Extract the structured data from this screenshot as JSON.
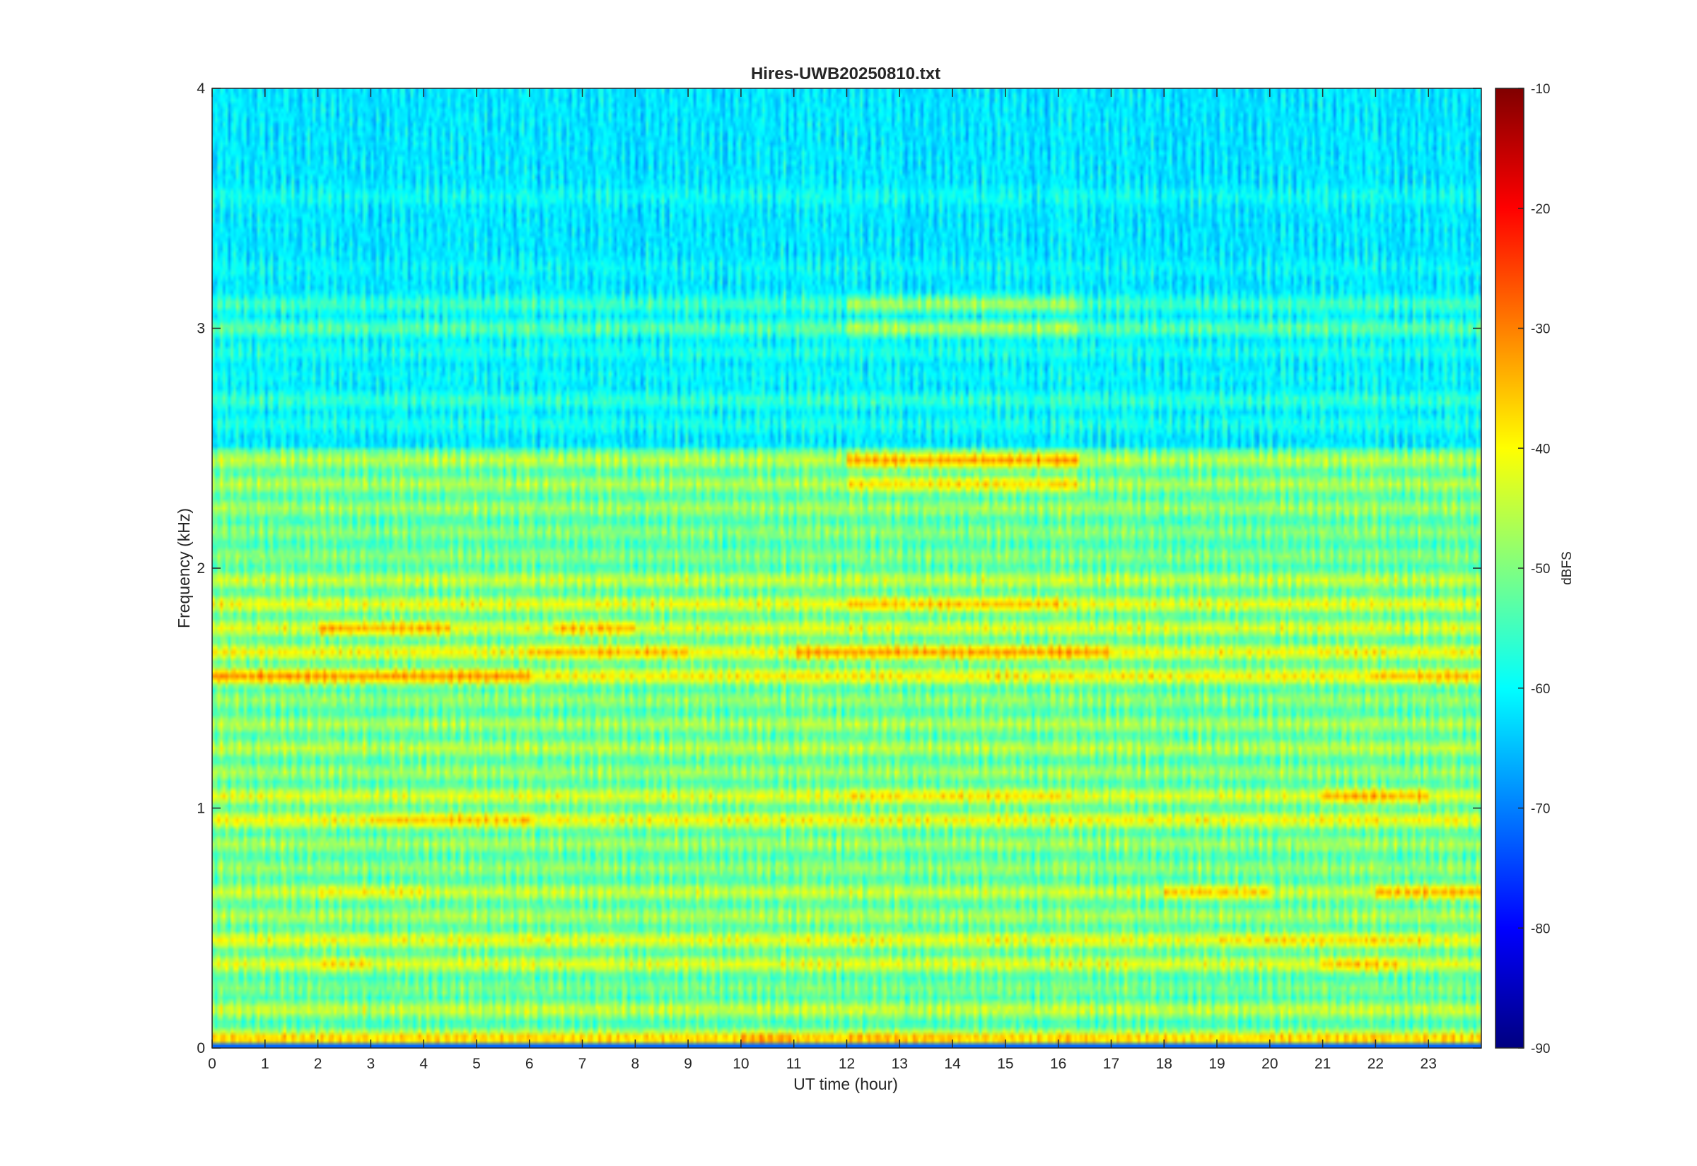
{
  "chart_data": {
    "type": "heatmap",
    "title": "Hires-UWB20250810.txt",
    "xlabel": "UT time (hour)",
    "ylabel": "Frequency (kHz)",
    "xlim": [
      0,
      24
    ],
    "ylim": [
      0,
      4
    ],
    "x_ticks": [
      "0",
      "1",
      "2",
      "3",
      "4",
      "5",
      "6",
      "7",
      "8",
      "9",
      "10",
      "11",
      "12",
      "13",
      "14",
      "15",
      "16",
      "17",
      "18",
      "19",
      "20",
      "21",
      "22",
      "23"
    ],
    "y_ticks": [
      "0",
      "1",
      "2",
      "3",
      "4"
    ],
    "colorbar": {
      "label": "dBFS",
      "range": [
        -90,
        -10
      ],
      "ticks": [
        "-90",
        "-80",
        "-70",
        "-60",
        "-50",
        "-40",
        "-30",
        "-20",
        "-10"
      ],
      "colormap": "jet"
    },
    "bands": [
      {
        "f": 0.04,
        "level": -36,
        "hot": [
          [
            10,
            11,
            -32
          ],
          [
            12,
            14,
            -34
          ]
        ]
      },
      {
        "f": 0.1,
        "level": -70
      },
      {
        "f": 0.16,
        "level": -44
      },
      {
        "f": 0.25,
        "level": -50
      },
      {
        "f": 0.35,
        "level": -42,
        "hot": [
          [
            2,
            3,
            -38
          ],
          [
            21,
            22.5,
            -36
          ]
        ]
      },
      {
        "f": 0.45,
        "level": -41,
        "hot": [
          [
            19,
            23,
            -38
          ]
        ]
      },
      {
        "f": 0.55,
        "level": -46
      },
      {
        "f": 0.65,
        "level": -44,
        "hot": [
          [
            2,
            4,
            -40
          ],
          [
            18,
            20,
            -36
          ],
          [
            22,
            24,
            -34
          ]
        ]
      },
      {
        "f": 0.75,
        "level": -48
      },
      {
        "f": 0.85,
        "level": -47
      },
      {
        "f": 0.95,
        "level": -40,
        "hot": [
          [
            3,
            6,
            -36
          ]
        ]
      },
      {
        "f": 1.05,
        "level": -42,
        "hot": [
          [
            12,
            16,
            -38
          ],
          [
            21,
            23,
            -34
          ]
        ]
      },
      {
        "f": 1.15,
        "level": -47
      },
      {
        "f": 1.25,
        "level": -45
      },
      {
        "f": 1.35,
        "level": -46
      },
      {
        "f": 1.45,
        "level": -48
      },
      {
        "f": 1.55,
        "level": -39,
        "hot": [
          [
            0,
            6,
            -32
          ],
          [
            22,
            24,
            -35
          ]
        ]
      },
      {
        "f": 1.65,
        "level": -40,
        "hot": [
          [
            6,
            9,
            -35
          ],
          [
            11,
            17,
            -33
          ]
        ]
      },
      {
        "f": 1.75,
        "level": -42,
        "hot": [
          [
            2,
            4.5,
            -34
          ],
          [
            6.5,
            8,
            -35
          ]
        ]
      },
      {
        "f": 1.85,
        "level": -41,
        "hot": [
          [
            12,
            16,
            -36
          ]
        ]
      },
      {
        "f": 1.95,
        "level": -44
      },
      {
        "f": 2.05,
        "level": -49
      },
      {
        "f": 2.15,
        "level": -49
      },
      {
        "f": 2.25,
        "level": -47
      },
      {
        "f": 2.35,
        "level": -46,
        "hot": [
          [
            12,
            16.4,
            -38
          ]
        ]
      },
      {
        "f": 2.45,
        "level": -45,
        "hot": [
          [
            12,
            16.4,
            -33
          ]
        ]
      },
      {
        "f": 2.6,
        "level": -58
      },
      {
        "f": 2.7,
        "level": -56
      },
      {
        "f": 2.8,
        "level": -60
      },
      {
        "f": 2.9,
        "level": -58
      },
      {
        "f": 3.0,
        "level": -53,
        "hot": [
          [
            12,
            16.4,
            -46
          ]
        ]
      },
      {
        "f": 3.1,
        "level": -55,
        "hot": [
          [
            12,
            16.4,
            -47
          ]
        ]
      },
      {
        "f": 3.25,
        "level": -60
      },
      {
        "f": 3.4,
        "level": -64
      },
      {
        "f": 3.55,
        "level": -59
      },
      {
        "f": 3.7,
        "level": -64
      },
      {
        "f": 3.85,
        "level": -66
      }
    ]
  }
}
